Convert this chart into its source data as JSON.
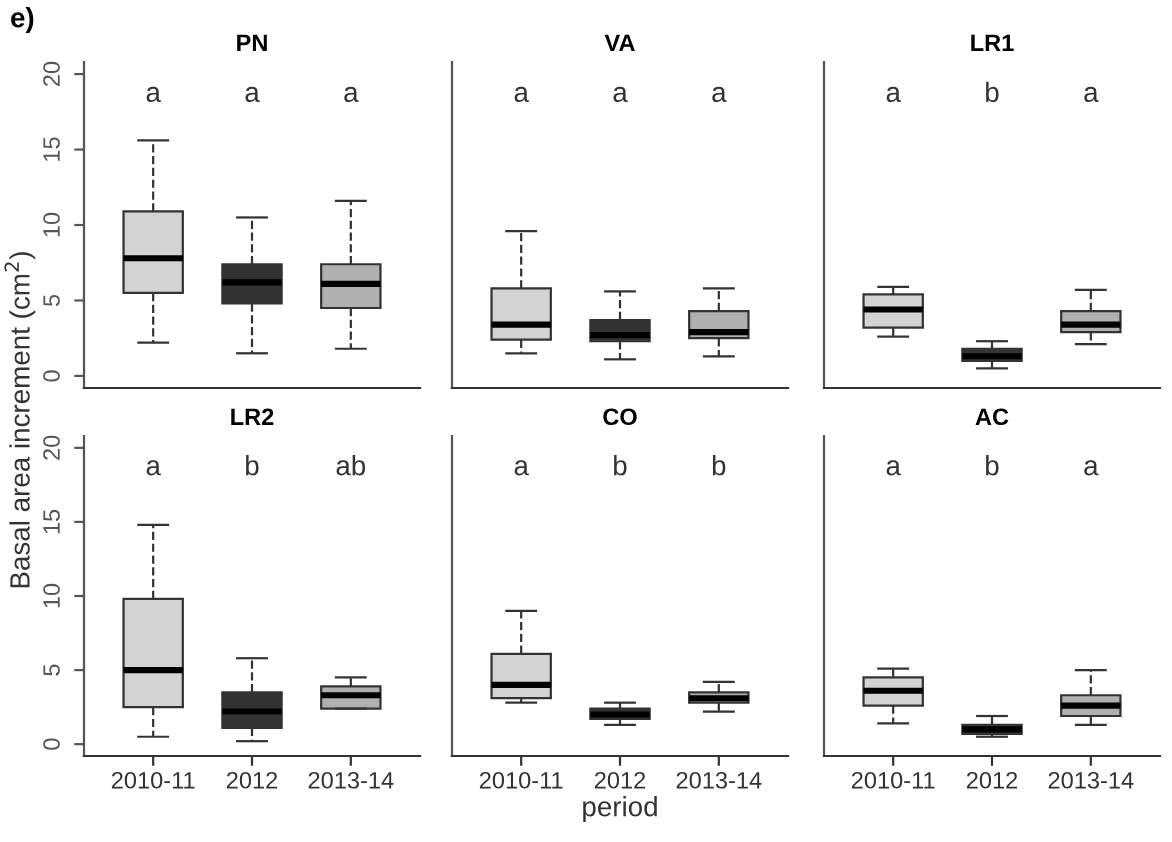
{
  "chart_data": [
    {
      "type": "box",
      "title": "PN",
      "annotations": [
        "e)",
        "a",
        "a",
        "a"
      ],
      "categories": [
        "2010-11",
        "2012",
        "2013-14"
      ],
      "colors": [
        "#d3d3d3",
        "#333333",
        "#b0b0b0"
      ],
      "ylim": [
        -0.8,
        20.8
      ],
      "yticks": [
        0,
        5,
        10,
        15,
        20
      ],
      "tick_labels": "y",
      "boxes": [
        {
          "low": 2.2,
          "q1": 5.5,
          "median": 7.8,
          "q3": 10.9,
          "high": 15.6
        },
        {
          "low": 1.5,
          "q1": 4.8,
          "median": 6.2,
          "q3": 7.4,
          "high": 10.5
        },
        {
          "low": 1.8,
          "q1": 4.5,
          "median": 6.1,
          "q3": 7.4,
          "high": 11.6
        }
      ]
    },
    {
      "type": "box",
      "title": "VA",
      "annotations": [
        "a",
        "a",
        "a"
      ],
      "categories": [
        "2010-11",
        "2012",
        "2013-14"
      ],
      "colors": [
        "#d3d3d3",
        "#333333",
        "#b0b0b0"
      ],
      "ylim": [
        -0.8,
        20.8
      ],
      "yticks": [
        0,
        5,
        10,
        15,
        20
      ],
      "tick_labels": false,
      "boxes": [
        {
          "low": 1.5,
          "q1": 2.4,
          "median": 3.4,
          "q3": 5.8,
          "high": 9.6
        },
        {
          "low": 1.1,
          "q1": 2.3,
          "median": 2.7,
          "q3": 3.7,
          "high": 5.6
        },
        {
          "low": 1.3,
          "q1": 2.5,
          "median": 2.9,
          "q3": 4.3,
          "high": 5.8
        }
      ]
    },
    {
      "type": "box",
      "title": "LR1",
      "annotations": [
        "a",
        "b",
        "a"
      ],
      "categories": [
        "2010-11",
        "2012",
        "2013-14"
      ],
      "colors": [
        "#d3d3d3",
        "#333333",
        "#b0b0b0"
      ],
      "ylim": [
        -0.8,
        20.8
      ],
      "yticks": [
        0,
        5,
        10,
        15,
        20
      ],
      "tick_labels": false,
      "boxes": [
        {
          "low": 2.6,
          "q1": 3.2,
          "median": 4.4,
          "q3": 5.4,
          "high": 5.9
        },
        {
          "low": 0.5,
          "q1": 1.0,
          "median": 1.3,
          "q3": 1.8,
          "high": 2.3
        },
        {
          "low": 2.1,
          "q1": 2.9,
          "median": 3.4,
          "q3": 4.3,
          "high": 5.7
        }
      ]
    },
    {
      "type": "box",
      "title": "LR2",
      "ylabel": "Basal area increment (cm$^{2}$)",
      "annotations": [
        "a",
        "b",
        "ab"
      ],
      "categories": [
        "2010-11",
        "2012",
        "2013-14"
      ],
      "colors": [
        "#d3d3d3",
        "#333333",
        "#b0b0b0"
      ],
      "ylim": [
        -0.8,
        20.8
      ],
      "yticks": [
        0,
        5,
        10,
        15,
        20
      ],
      "boxes": [
        {
          "low": 0.5,
          "q1": 2.5,
          "median": 5.0,
          "q3": 9.8,
          "high": 14.8
        },
        {
          "low": 0.2,
          "q1": 1.1,
          "median": 2.2,
          "q3": 3.5,
          "high": 5.8
        },
        {
          "low": 2.4,
          "q1": 2.4,
          "median": 3.3,
          "q3": 3.9,
          "high": 4.5
        }
      ]
    },
    {
      "type": "box",
      "title": "CO",
      "xlabel": "period",
      "annotations": [
        "a",
        "b",
        "b"
      ],
      "categories": [
        "2010-11",
        "2012",
        "2013-14"
      ],
      "colors": [
        "#d3d3d3",
        "#333333",
        "#b0b0b0"
      ],
      "ylim": [
        -0.8,
        20.8
      ],
      "yticks": [
        0,
        5,
        10,
        15,
        20
      ],
      "tick_labels": "x",
      "boxes": [
        {
          "low": 2.8,
          "q1": 3.1,
          "median": 4.0,
          "q3": 6.1,
          "high": 9.0
        },
        {
          "low": 1.3,
          "q1": 1.7,
          "median": 2.0,
          "q3": 2.4,
          "high": 2.8
        },
        {
          "low": 2.2,
          "q1": 2.8,
          "median": 3.1,
          "q3": 3.5,
          "high": 4.2
        }
      ]
    },
    {
      "type": "box",
      "title": "AC",
      "annotations": [
        "a",
        "b",
        "a"
      ],
      "categories": [
        "2010-11",
        "2012",
        "2013-14"
      ],
      "colors": [
        "#d3d3d3",
        "#333333",
        "#b0b0b0"
      ],
      "ylim": [
        -0.8,
        20.8
      ],
      "yticks": [
        0,
        5,
        10,
        15,
        20
      ],
      "tick_labels": "x",
      "boxes": [
        {
          "low": 1.4,
          "q1": 2.6,
          "median": 3.6,
          "q3": 4.5,
          "high": 5.1
        },
        {
          "low": 0.5,
          "q1": 0.7,
          "median": 1.0,
          "q3": 1.3,
          "high": 1.9
        },
        {
          "low": 1.3,
          "q1": 1.9,
          "median": 2.6,
          "q3": 3.3,
          "high": 5.0
        }
      ]
    }
  ]
}
